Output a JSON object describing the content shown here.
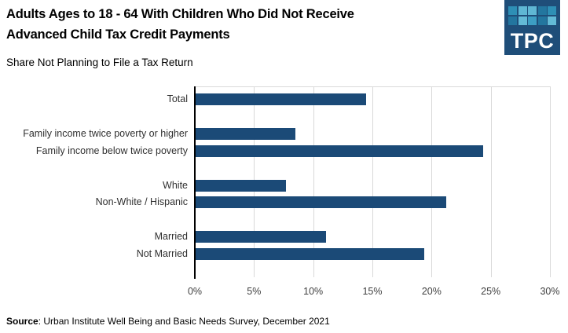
{
  "header": {
    "title_line1": "Adults Ages to 18 - 64 With Children Who Did Not Receive",
    "title_line2": "Advanced Child Tax Credit Payments",
    "subtitle": "Share Not Planning to File a Tax Return"
  },
  "logo": {
    "text": "TPC",
    "bg_color": "#1f4e79",
    "tile_rows": [
      [
        "#2e8fb5",
        "#5fb7d4",
        "#5fb7d4",
        "#23769f",
        "#2e8fb5"
      ],
      [
        "#23769f",
        "#63bad6",
        "#3d9ec3",
        "#23769f",
        "#63bad6"
      ]
    ]
  },
  "chart_data": {
    "type": "bar",
    "orientation": "horizontal",
    "title": "Adults Ages to 18 - 64 With Children Who Did Not Receive Advanced Child Tax Credit Payments",
    "subtitle": "Share Not Planning to File a Tax Return",
    "groups": [
      {
        "categories": [
          "Total"
        ],
        "values": [
          14.4
        ]
      },
      {
        "categories": [
          "Family income twice poverty or higher",
          "Family income below twice poverty"
        ],
        "values": [
          8.4,
          24.3
        ]
      },
      {
        "categories": [
          "White",
          "Non-White / Hispanic"
        ],
        "values": [
          7.6,
          21.2
        ]
      },
      {
        "categories": [
          "Married",
          "Not Married"
        ],
        "values": [
          11.0,
          19.3
        ]
      }
    ],
    "xlim": [
      0,
      30
    ],
    "x_tick_labels": [
      "0%",
      "5%",
      "10%",
      "15%",
      "20%",
      "25%",
      "30%"
    ],
    "x_tick_values": [
      0,
      5,
      10,
      15,
      20,
      25,
      30
    ],
    "bar_color": "#1b4a77",
    "gridline_color": "#d9d9d9",
    "axis_color": "#000000",
    "legend": false,
    "grid": true
  },
  "footer": {
    "source_label": "Source",
    "source_text": ": Urban Institute Well Being and Basic Needs Survey, December 2021"
  }
}
